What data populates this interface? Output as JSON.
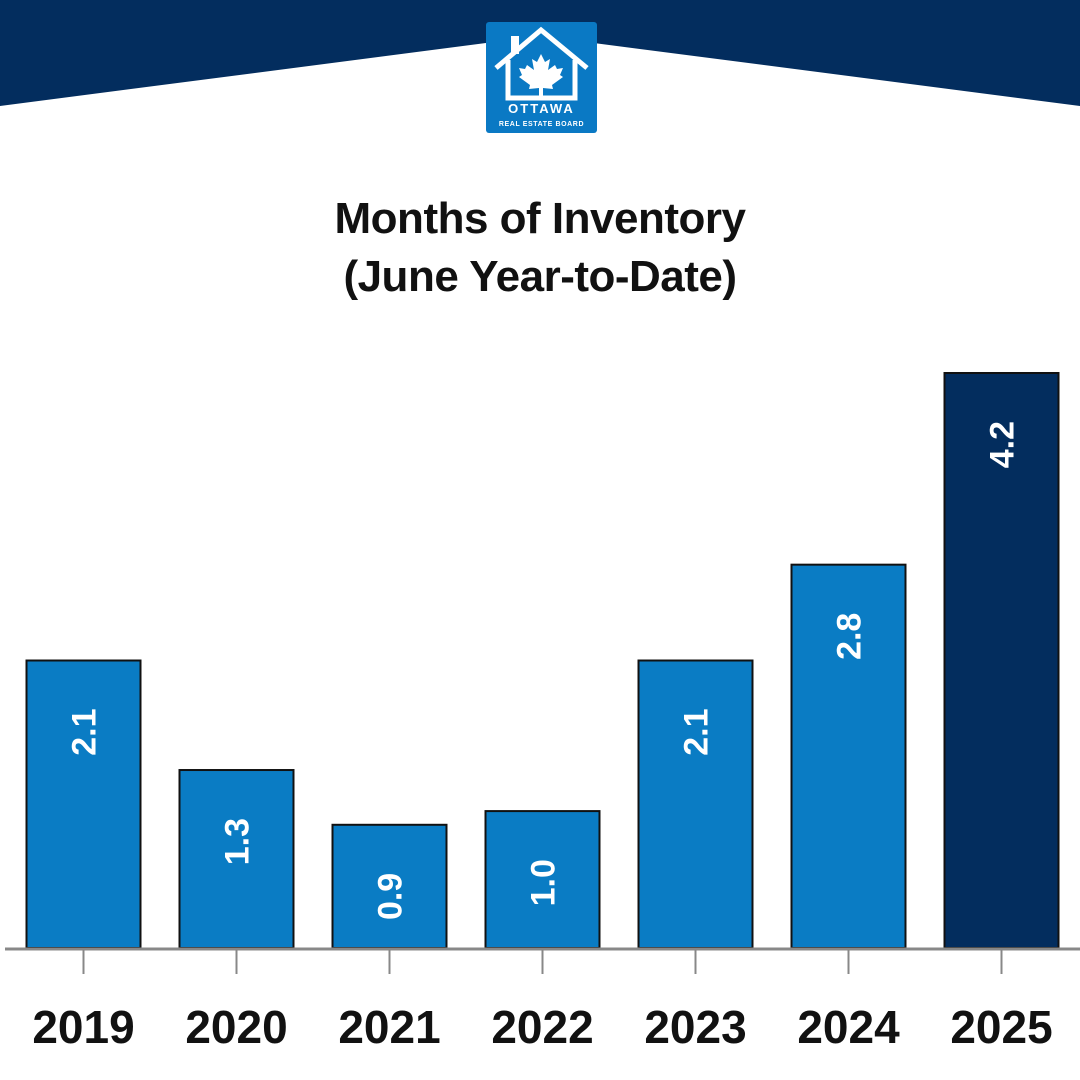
{
  "header": {
    "band_color": "#032d5e",
    "logo": {
      "icon": "house-maple-leaf-icon",
      "text_top": "OTTAWA",
      "text_bottom": "REAL ESTATE BOARD",
      "color": "#0a79c4"
    }
  },
  "chart_data": {
    "type": "bar",
    "title": "Months of Inventory",
    "subtitle": "(June Year-to-Date)",
    "categories": [
      "2019",
      "2020",
      "2021",
      "2022",
      "2023",
      "2024",
      "2025"
    ],
    "values": [
      2.1,
      1.3,
      0.9,
      1.0,
      2.1,
      2.8,
      4.2
    ],
    "value_labels": [
      "2.1",
      "1.3",
      "0.9",
      "1.0",
      "2.1",
      "2.8",
      "4.2"
    ],
    "highlight_index": 6,
    "ylim": [
      0,
      4.2
    ],
    "xlabel": "",
    "ylabel": "",
    "grid": false,
    "colors": {
      "bar": "#0a7cc4",
      "highlight": "#032d5e",
      "label_inside": "#ffffff",
      "label_outside": "#111111",
      "axis": "#888888"
    }
  }
}
